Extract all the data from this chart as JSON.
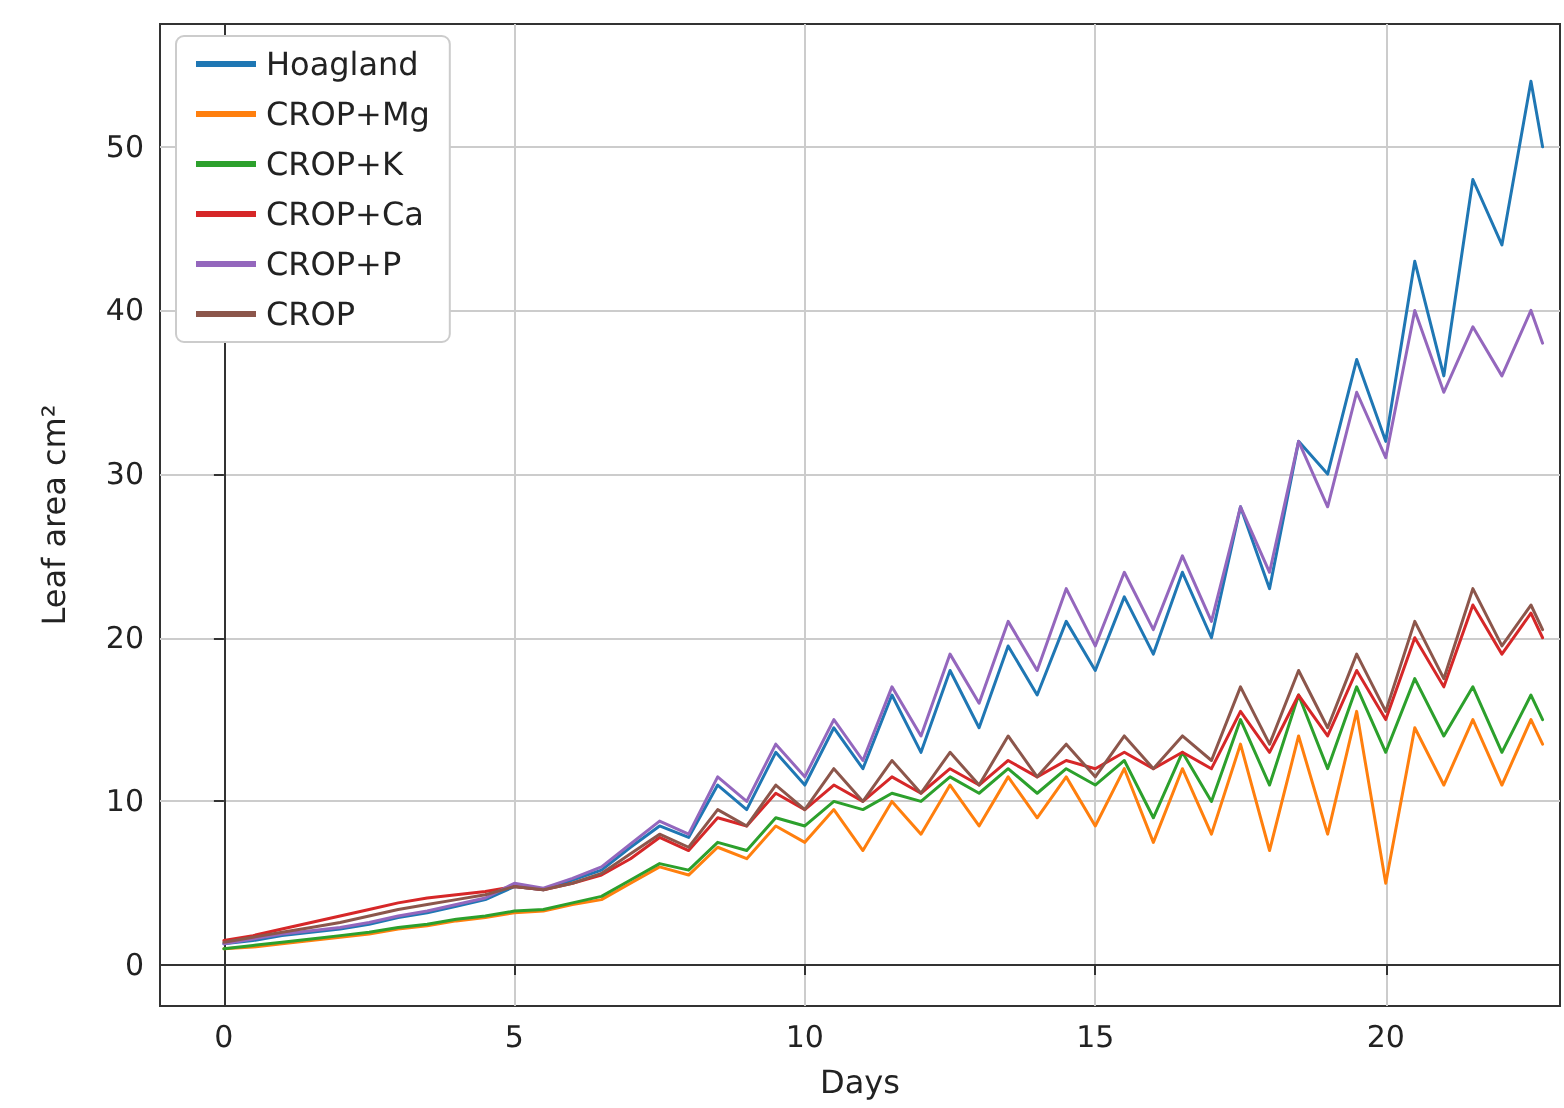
{
  "chart_data": {
    "type": "line",
    "xlabel": "Days",
    "ylabel": "Leaf area cm²",
    "x": [
      0,
      0.5,
      1,
      1.5,
      2,
      2.5,
      3,
      3.5,
      4,
      4.5,
      5,
      5.5,
      6,
      6.5,
      7,
      7.5,
      8,
      8.5,
      9,
      9.5,
      10,
      10.5,
      11,
      11.5,
      12,
      12.5,
      13,
      13.5,
      14,
      14.5,
      15,
      15.5,
      16,
      16.5,
      17,
      17.5,
      18,
      18.5,
      19,
      19.5,
      20,
      20.5,
      21,
      21.5,
      22,
      22.5,
      22.7
    ],
    "series": [
      {
        "name": "Hoagland",
        "color": "#1f77b4",
        "values": [
          1.3,
          1.5,
          1.8,
          2.0,
          2.2,
          2.5,
          2.9,
          3.2,
          3.6,
          4.0,
          4.8,
          4.6,
          5.2,
          5.8,
          7.2,
          8.5,
          7.8,
          11,
          9.5,
          13,
          11,
          14.5,
          12,
          16.5,
          13,
          18,
          14.5,
          19.5,
          16.5,
          21,
          18,
          22.5,
          19,
          24,
          20,
          28,
          23,
          32,
          30,
          37,
          32,
          43,
          36,
          48,
          44,
          54,
          50
        ]
      },
      {
        "name": "CROP+Mg",
        "color": "#ff7f0e",
        "values": [
          1.0,
          1.1,
          1.3,
          1.5,
          1.7,
          1.9,
          2.2,
          2.4,
          2.7,
          2.9,
          3.2,
          3.3,
          3.7,
          4.0,
          5.0,
          6.0,
          5.5,
          7.2,
          6.5,
          8.5,
          7.5,
          9.5,
          7,
          10,
          8,
          11,
          8.5,
          11.5,
          9,
          11.5,
          8.5,
          12,
          7.5,
          12,
          8,
          13.5,
          7,
          14,
          8,
          15.5,
          5,
          14.5,
          11,
          15,
          11,
          15,
          13.5
        ]
      },
      {
        "name": "CROP+K",
        "color": "#2ca02c",
        "values": [
          1.0,
          1.2,
          1.4,
          1.6,
          1.8,
          2.0,
          2.3,
          2.5,
          2.8,
          3.0,
          3.3,
          3.4,
          3.8,
          4.2,
          5.2,
          6.2,
          5.8,
          7.5,
          7,
          9,
          8.5,
          10,
          9.5,
          10.5,
          10,
          11.5,
          10.5,
          12,
          10.5,
          12,
          11,
          12.5,
          9,
          13,
          10,
          15,
          11,
          16.5,
          12,
          17,
          13,
          17.5,
          14,
          17,
          13,
          16.5,
          15
        ]
      },
      {
        "name": "CROP+Ca",
        "color": "#d62728",
        "values": [
          1.5,
          1.8,
          2.2,
          2.6,
          3.0,
          3.4,
          3.8,
          4.1,
          4.3,
          4.5,
          4.8,
          4.6,
          5.0,
          5.5,
          6.5,
          7.8,
          7,
          9,
          8.5,
          10.5,
          9.5,
          11,
          10,
          11.5,
          10.5,
          12,
          11,
          12.5,
          11.5,
          12.5,
          12,
          13,
          12,
          13,
          12,
          15.5,
          13,
          16.5,
          14,
          18,
          15,
          20,
          17,
          22,
          19,
          21.5,
          20
        ]
      },
      {
        "name": "CROP+P",
        "color": "#9467bd",
        "values": [
          1.3,
          1.6,
          1.9,
          2.1,
          2.3,
          2.6,
          3.0,
          3.3,
          3.7,
          4.1,
          5.0,
          4.7,
          5.3,
          6.0,
          7.4,
          8.8,
          8.0,
          11.5,
          10,
          13.5,
          11.5,
          15,
          12.5,
          17,
          14,
          19,
          16,
          21,
          18,
          23,
          19.5,
          24,
          20.5,
          25,
          21,
          28,
          24,
          32,
          28,
          35,
          31,
          40,
          35,
          39,
          36,
          40,
          38
        ]
      },
      {
        "name": "CROP",
        "color": "#8c564b",
        "values": [
          1.4,
          1.7,
          2.0,
          2.3,
          2.6,
          3.0,
          3.4,
          3.7,
          4.0,
          4.3,
          4.8,
          4.6,
          5.0,
          5.6,
          6.8,
          8,
          7.2,
          9.5,
          8.5,
          11,
          9.5,
          12,
          10,
          12.5,
          10.5,
          13,
          11,
          14,
          11.5,
          13.5,
          11.5,
          14,
          12,
          14,
          12.5,
          17,
          13.5,
          18,
          14.5,
          19,
          15.5,
          21,
          17.5,
          23,
          19.5,
          22,
          20.5
        ]
      }
    ],
    "xlim": [
      -1.1,
      23.0
    ],
    "ylim": [
      -2.5,
      57.5
    ],
    "xticks": [
      0,
      5,
      10,
      15,
      20
    ],
    "yticks": [
      0,
      10,
      20,
      30,
      40,
      50
    ],
    "grid": true,
    "legend": "top left",
    "marker": "none",
    "line_style": "solid"
  }
}
